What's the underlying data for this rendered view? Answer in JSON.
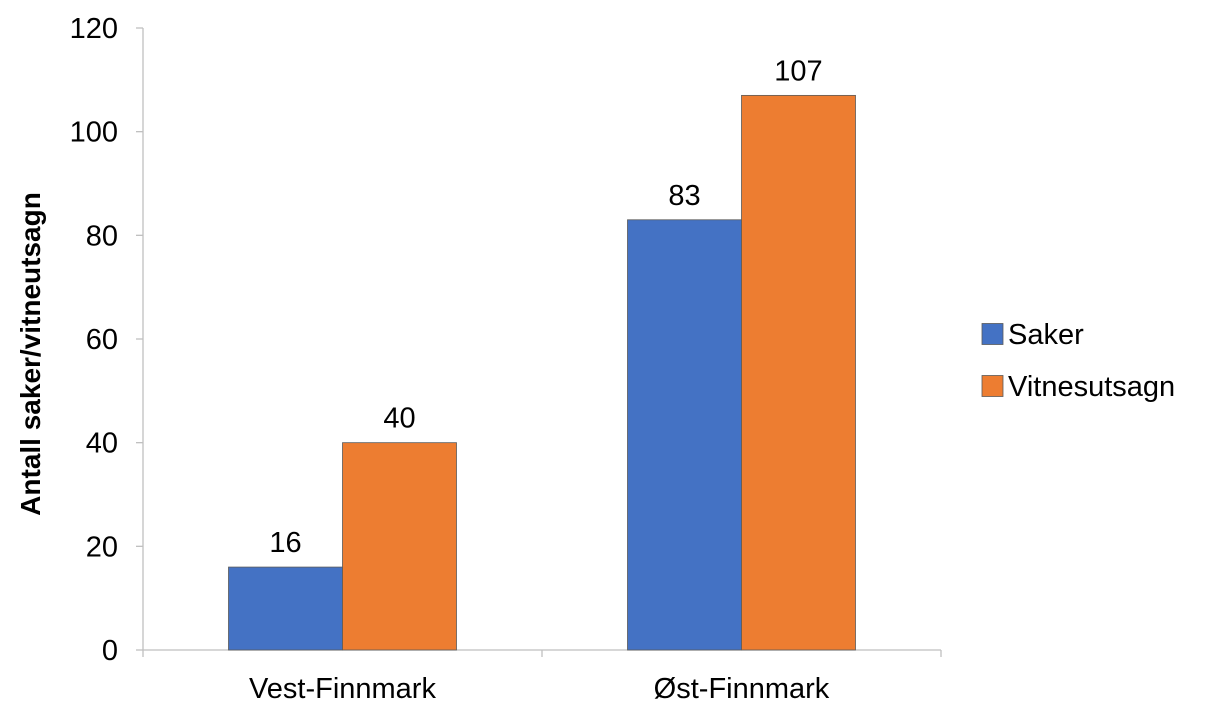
{
  "chart_data": {
    "type": "bar",
    "title": "",
    "xlabel": "",
    "ylabel": "Antall saker/vitneutsagn",
    "categories": [
      "Vest-Finnmark",
      "Øst-Finnmark"
    ],
    "series": [
      {
        "name": "Saker",
        "values": [
          16,
          83
        ],
        "color": "#4472C4"
      },
      {
        "name": "Vitnesutsagn",
        "values": [
          40,
          107
        ],
        "color": "#ED7D31"
      }
    ],
    "ylim": [
      0,
      120
    ],
    "yticks": [
      0,
      20,
      40,
      60,
      80,
      100,
      120
    ],
    "grid": false,
    "legend": "right",
    "data_labels": true
  }
}
